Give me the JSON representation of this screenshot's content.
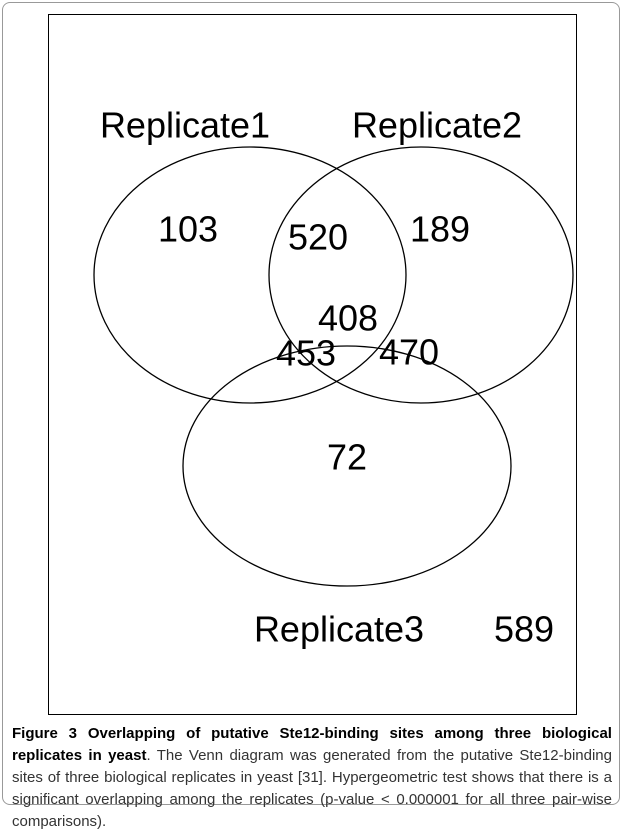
{
  "figure": {
    "labels": [
      "Replicate1",
      "Replicate2",
      "Replicate3"
    ],
    "regions": {
      "only1": 103,
      "only2": 189,
      "only3": 72,
      "r1r2": 520,
      "r1r3": 453,
      "r2r3": 470,
      "all": 408,
      "none": 589
    }
  },
  "caption": {
    "label": "Figure 3",
    "title": "Overlapping of putative Ste12-binding sites among three biological replicates in yeast",
    "text": ". The Venn diagram was generated from the putative Ste12-binding sites of three biological replicates in yeast [31]. Hypergeometric test shows that there is a significant overlapping among the replicates (p-value < 0.000001 for all three pair-wise comparisons)."
  }
}
